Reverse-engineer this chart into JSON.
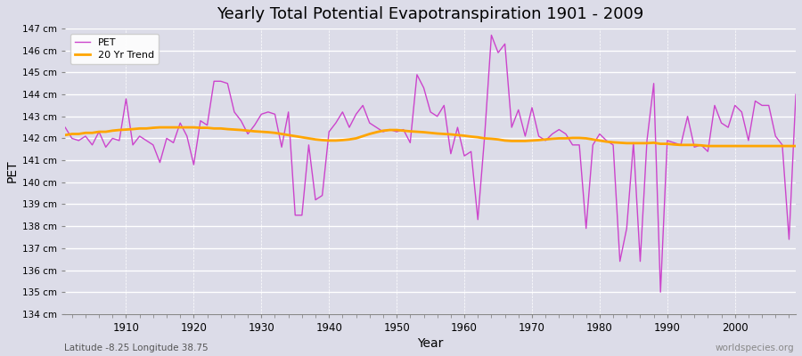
{
  "title": "Yearly Total Potential Evapotranspiration 1901 - 2009",
  "xlabel": "Year",
  "ylabel": "PET",
  "subtitle": "Latitude -8.25 Longitude 38.75",
  "watermark": "worldspecies.org",
  "ylim": [
    134,
    147
  ],
  "pet_color": "#CC44CC",
  "trend_color": "#FFA500",
  "bg_color": "#DCDCE8",
  "grid_color": "#FFFFFF",
  "years": [
    1901,
    1902,
    1903,
    1904,
    1905,
    1906,
    1907,
    1908,
    1909,
    1910,
    1911,
    1912,
    1913,
    1914,
    1915,
    1916,
    1917,
    1918,
    1919,
    1920,
    1921,
    1922,
    1923,
    1924,
    1925,
    1926,
    1927,
    1928,
    1929,
    1930,
    1931,
    1932,
    1933,
    1934,
    1935,
    1936,
    1937,
    1938,
    1939,
    1940,
    1941,
    1942,
    1943,
    1944,
    1945,
    1946,
    1947,
    1948,
    1949,
    1950,
    1951,
    1952,
    1953,
    1954,
    1955,
    1956,
    1957,
    1958,
    1959,
    1960,
    1961,
    1962,
    1963,
    1964,
    1965,
    1966,
    1967,
    1968,
    1969,
    1970,
    1971,
    1972,
    1973,
    1974,
    1975,
    1976,
    1977,
    1978,
    1979,
    1980,
    1981,
    1982,
    1983,
    1984,
    1985,
    1986,
    1987,
    1988,
    1989,
    1990,
    1991,
    1992,
    1993,
    1994,
    1995,
    1996,
    1997,
    1998,
    1999,
    2000,
    2001,
    2002,
    2003,
    2004,
    2005,
    2006,
    2007,
    2008,
    2009
  ],
  "pet_values": [
    142.5,
    142.0,
    141.9,
    142.1,
    141.7,
    142.3,
    141.6,
    142.0,
    141.9,
    143.8,
    141.7,
    142.1,
    141.9,
    141.7,
    140.9,
    142.0,
    141.8,
    142.7,
    142.1,
    140.8,
    142.8,
    142.6,
    144.6,
    144.6,
    144.5,
    143.2,
    142.8,
    142.2,
    142.6,
    143.1,
    143.2,
    143.1,
    141.6,
    143.2,
    138.5,
    138.5,
    141.7,
    139.2,
    139.4,
    142.3,
    142.7,
    143.2,
    142.5,
    143.1,
    143.5,
    142.7,
    142.5,
    142.3,
    142.4,
    142.3,
    142.4,
    141.8,
    144.9,
    144.3,
    143.2,
    143.0,
    143.5,
    141.3,
    142.5,
    141.2,
    141.4,
    138.3,
    142.1,
    146.7,
    145.9,
    146.3,
    142.5,
    143.3,
    142.1,
    143.4,
    142.1,
    141.9,
    142.2,
    142.4,
    142.2,
    141.7,
    141.7,
    137.9,
    141.7,
    142.2,
    141.9,
    141.7,
    136.4,
    137.9,
    141.8,
    136.4,
    141.9,
    144.5,
    135.0,
    141.9,
    141.8,
    141.7,
    143.0,
    141.6,
    141.7,
    141.4,
    143.5,
    142.7,
    142.5,
    143.5,
    143.2,
    141.9,
    143.7,
    143.5,
    143.5,
    142.1,
    141.7,
    137.4,
    144.0
  ],
  "trend_values": [
    142.15,
    142.2,
    142.2,
    142.25,
    142.25,
    142.3,
    142.3,
    142.35,
    142.38,
    142.4,
    142.42,
    142.45,
    142.45,
    142.48,
    142.5,
    142.5,
    142.5,
    142.5,
    142.5,
    142.5,
    142.48,
    142.48,
    142.45,
    142.45,
    142.42,
    142.4,
    142.38,
    142.35,
    142.32,
    142.3,
    142.28,
    142.25,
    142.2,
    142.15,
    142.1,
    142.05,
    142.0,
    141.95,
    141.92,
    141.9,
    141.9,
    141.92,
    141.95,
    142.0,
    142.1,
    142.2,
    142.28,
    142.35,
    142.38,
    142.38,
    142.35,
    142.32,
    142.3,
    142.28,
    142.25,
    142.22,
    142.2,
    142.18,
    142.15,
    142.12,
    142.08,
    142.05,
    142.0,
    141.98,
    141.95,
    141.9,
    141.88,
    141.88,
    141.88,
    141.9,
    141.92,
    141.95,
    141.98,
    142.0,
    142.0,
    142.02,
    142.02,
    142.0,
    141.95,
    141.9,
    141.85,
    141.82,
    141.8,
    141.78,
    141.78,
    141.78,
    141.78,
    141.8,
    141.75,
    141.75,
    141.72,
    141.7,
    141.7,
    141.7,
    141.68,
    141.65,
    141.65,
    141.65,
    141.65,
    141.65,
    141.65,
    141.65,
    141.65,
    141.65,
    141.65,
    141.65,
    141.65,
    141.65,
    141.65
  ]
}
